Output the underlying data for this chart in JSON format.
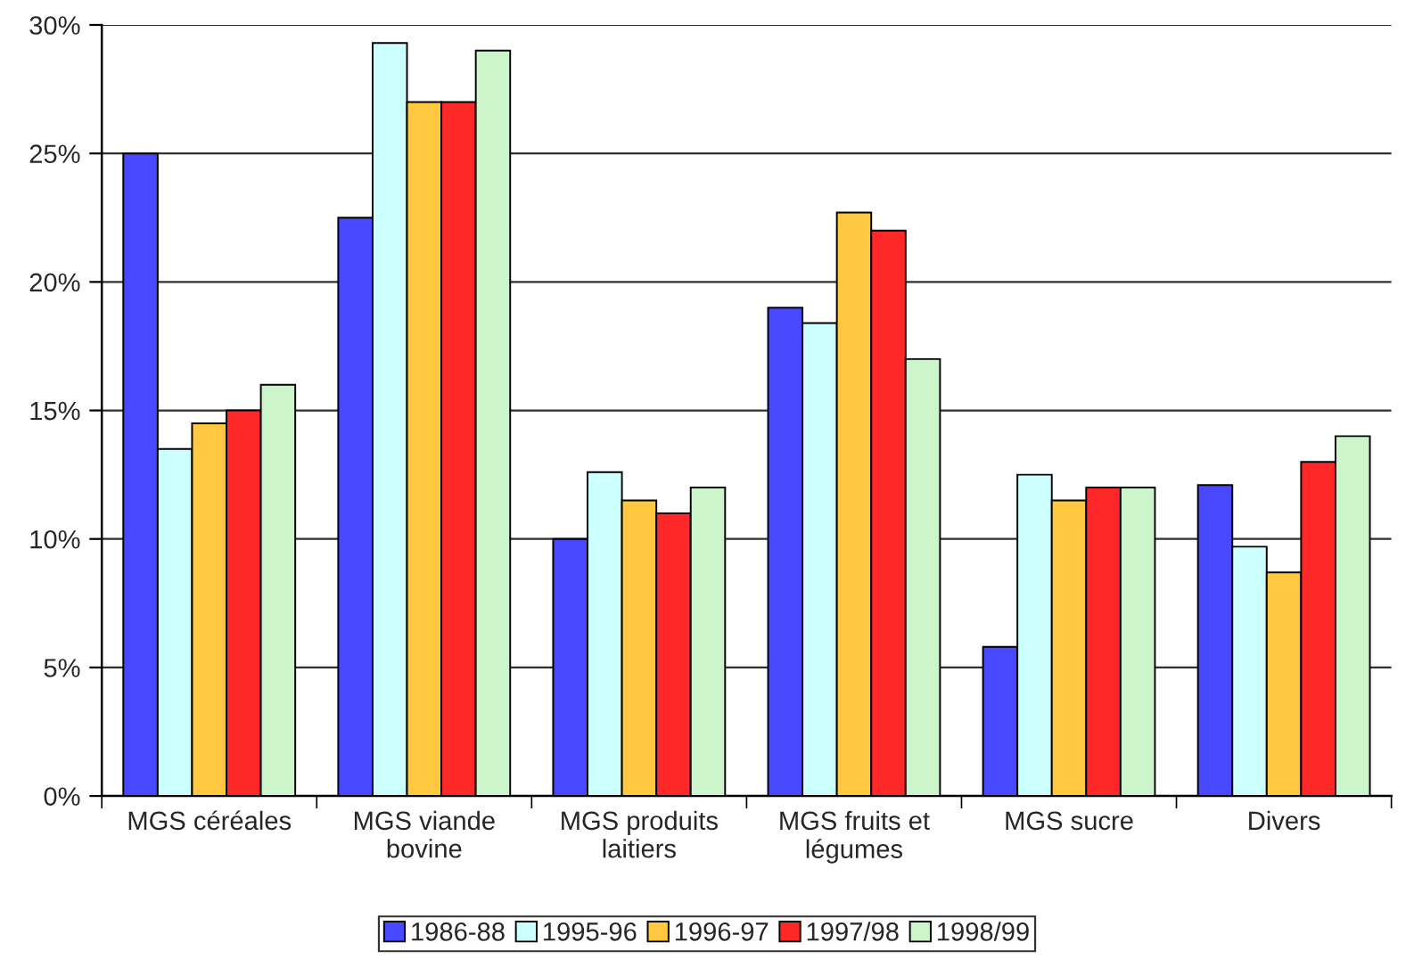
{
  "chart_data": {
    "type": "bar",
    "categories": [
      "MGS céréales",
      "MGS viande\nbovine",
      "MGS produits\nlaitiers",
      "MGS fruits et\nlégumes",
      "MGS sucre",
      "Divers"
    ],
    "series": [
      {
        "name": "1986-88",
        "color": "#4848ff",
        "values": [
          25,
          22.5,
          10,
          19,
          5.8,
          12.1
        ]
      },
      {
        "name": "1995-96",
        "color": "#ccffff",
        "values": [
          13.5,
          29.3,
          12.6,
          18.4,
          12.5,
          9.7
        ]
      },
      {
        "name": "1996-97",
        "color": "#ffc840",
        "values": [
          14.5,
          27,
          11.5,
          22.7,
          11.5,
          8.7
        ]
      },
      {
        "name": "1997/98",
        "color": "#ff2828",
        "values": [
          15,
          27,
          11,
          22,
          12,
          13
        ]
      },
      {
        "name": "1998/99",
        "color": "#ccf5cc",
        "values": [
          16,
          29,
          12,
          17,
          12,
          14
        ]
      }
    ],
    "ylim": [
      0,
      30
    ],
    "yticks": [
      {
        "value": 0,
        "label": "0%"
      },
      {
        "value": 5,
        "label": "5%"
      },
      {
        "value": 10,
        "label": "10%"
      },
      {
        "value": 15,
        "label": "15%"
      },
      {
        "value": 20,
        "label": "20%"
      },
      {
        "value": 25,
        "label": "25%"
      },
      {
        "value": 30,
        "label": "30%"
      }
    ],
    "grid": "y",
    "legend": "bottom"
  }
}
